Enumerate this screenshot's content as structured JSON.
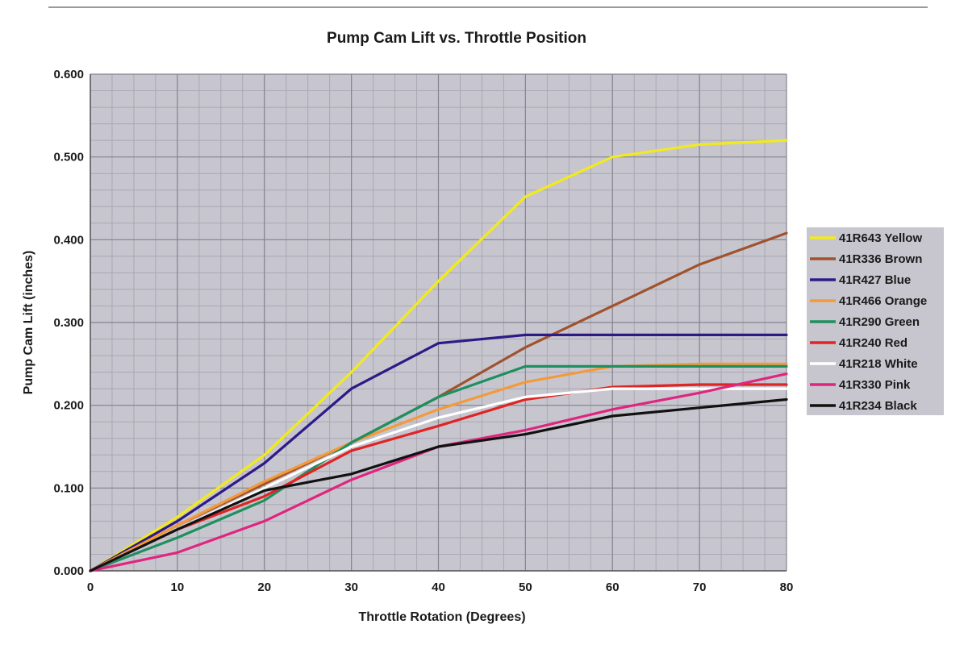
{
  "chart_data": {
    "type": "line",
    "title": "Pump Cam Lift vs. Throttle Position",
    "xlabel": "Throttle Rotation (Degrees)",
    "ylabel": "Pump Cam Lift (inches)",
    "xlim": [
      0,
      80
    ],
    "ylim": [
      0,
      0.6
    ],
    "x_ticks": [
      "0",
      "10",
      "20",
      "30",
      "40",
      "50",
      "60",
      "70",
      "80"
    ],
    "y_ticks": [
      "0.000",
      "0.100",
      "0.200",
      "0.300",
      "0.400",
      "0.500",
      "0.600"
    ],
    "grid": true,
    "legend_position": "right",
    "plot_background": "#c7c6cf",
    "x": [
      0,
      10,
      20,
      30,
      40,
      50,
      60,
      70,
      80
    ],
    "series": [
      {
        "name": "41R643 Yellow",
        "color": "#f2ea1c",
        "values": [
          0,
          0.065,
          0.14,
          0.24,
          0.35,
          0.452,
          0.5,
          0.515,
          0.52
        ]
      },
      {
        "name": "41R336 Brown",
        "color": "#a0522d",
        "values": [
          0,
          0.055,
          0.105,
          0.155,
          0.21,
          0.27,
          0.32,
          0.37,
          0.408
        ]
      },
      {
        "name": "41R427 Blue",
        "color": "#2e1a86",
        "values": [
          0,
          0.06,
          0.13,
          0.22,
          0.275,
          0.285,
          0.285,
          0.285,
          0.285
        ]
      },
      {
        "name": "41R466 Orange",
        "color": "#f39a3a",
        "values": [
          0,
          0.055,
          0.108,
          0.155,
          0.195,
          0.228,
          0.247,
          0.25,
          0.25
        ]
      },
      {
        "name": "41R290 Green",
        "color": "#1e8f5e",
        "values": [
          0,
          0.04,
          0.085,
          0.155,
          0.21,
          0.247,
          0.247,
          0.247,
          0.247
        ]
      },
      {
        "name": "41R240 Red",
        "color": "#e02424",
        "values": [
          0,
          0.05,
          0.09,
          0.145,
          0.175,
          0.207,
          0.222,
          0.225,
          0.225
        ]
      },
      {
        "name": "41R218 White",
        "color": "#ffffff",
        "values": [
          0,
          0.05,
          0.1,
          0.15,
          0.185,
          0.21,
          0.22,
          0.22,
          0.22
        ]
      },
      {
        "name": "41R330 Pink",
        "color": "#e0257f",
        "values": [
          0,
          0.022,
          0.06,
          0.11,
          0.15,
          0.17,
          0.195,
          0.215,
          0.238
        ]
      },
      {
        "name": "41R234 Black",
        "color": "#111111",
        "values": [
          0,
          0.05,
          0.097,
          0.117,
          0.15,
          0.165,
          0.187,
          0.197,
          0.207
        ]
      }
    ]
  }
}
